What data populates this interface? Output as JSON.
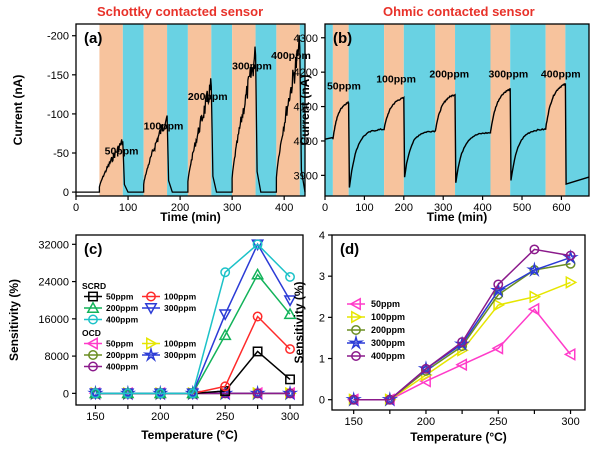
{
  "figure": {
    "title_left": "Schottky contacted sensor",
    "title_right": "Ohmic contacted sensor",
    "colors": {
      "title": "#e8322a",
      "band_blue": "#69d2e3",
      "band_orange": "#f7c39d",
      "trace": "#000000"
    }
  },
  "chart_data": [
    {
      "id": "a",
      "panel_label": "(a)",
      "type": "line",
      "title": "Schottky contacted sensor",
      "xlabel": "Time (min)",
      "ylabel": "Current (nA)",
      "xlim": [
        0,
        440
      ],
      "ylim": [
        5,
        -215
      ],
      "y_inverted": true,
      "xticks": [
        0,
        100,
        200,
        300,
        400
      ],
      "yticks": [
        0,
        -50,
        -100,
        -150,
        -200
      ],
      "ytick_labels": [
        "0",
        "-50",
        "-100",
        "-150",
        "-200"
      ],
      "shaded_background": {
        "range": [
          45,
          440
        ],
        "alternating": [
          "orange",
          "blue"
        ],
        "edges": [
          45,
          90,
          130,
          175,
          215,
          260,
          300,
          345,
          385,
          430,
          440
        ]
      },
      "annotations": [
        {
          "text": "50ppm",
          "x": 55,
          "y": -48
        },
        {
          "text": "100ppm",
          "x": 130,
          "y": -80
        },
        {
          "text": "200ppm",
          "x": 215,
          "y": -118
        },
        {
          "text": "300ppm",
          "x": 300,
          "y": -157
        },
        {
          "text": "400ppm",
          "x": 375,
          "y": -170
        }
      ],
      "pulses": [
        {
          "start": 45,
          "end": 90,
          "peak": -65,
          "label": "50ppm"
        },
        {
          "start": 130,
          "end": 175,
          "peak": -98,
          "label": "100ppm"
        },
        {
          "start": 215,
          "end": 260,
          "peak": -135,
          "label": "200ppm"
        },
        {
          "start": 300,
          "end": 345,
          "peak": -175,
          "label": "300ppm"
        },
        {
          "start": 385,
          "end": 430,
          "peak": -185,
          "label": "400ppm"
        }
      ],
      "baseline": 0
    },
    {
      "id": "b",
      "panel_label": "(b)",
      "type": "line",
      "title": "Ohmic contacted sensor",
      "xlabel": "Time (min)",
      "ylabel": "Current (nA)",
      "xlim": [
        0,
        670
      ],
      "ylim": [
        3840,
        4340
      ],
      "xticks": [
        0,
        100,
        200,
        300,
        400,
        500,
        600
      ],
      "yticks": [
        3900,
        4000,
        4100,
        4200,
        4300
      ],
      "shaded_background": {
        "range": [
          0,
          670
        ],
        "alternating": [
          "blue",
          "orange"
        ],
        "edges": [
          0,
          20,
          60,
          150,
          200,
          280,
          330,
          420,
          470,
          560,
          610,
          670
        ]
      },
      "annotations": [
        {
          "text": "50ppm",
          "x": 5,
          "y": 4150
        },
        {
          "text": "100ppm",
          "x": 130,
          "y": 4170
        },
        {
          "text": "200ppm",
          "x": 265,
          "y": 4185
        },
        {
          "text": "300ppm",
          "x": 415,
          "y": 4185
        },
        {
          "text": "400ppm",
          "x": 548,
          "y": 4185
        }
      ],
      "pulses": [
        {
          "start": 20,
          "end": 60,
          "base": 4005,
          "peak": 4112,
          "trough": 3865,
          "label": "50ppm"
        },
        {
          "start": 150,
          "end": 200,
          "base": 4035,
          "peak": 4125,
          "trough": 3895,
          "label": "100ppm"
        },
        {
          "start": 280,
          "end": 330,
          "base": 4030,
          "peak": 4135,
          "trough": 3880,
          "label": "200ppm"
        },
        {
          "start": 420,
          "end": 470,
          "base": 4025,
          "peak": 4150,
          "trough": 3885,
          "label": "300ppm"
        },
        {
          "start": 560,
          "end": 610,
          "base": 4035,
          "peak": 4165,
          "trough": 3875,
          "label": "400ppm"
        }
      ]
    },
    {
      "id": "c",
      "panel_label": "(c)",
      "type": "line",
      "xlabel": "Temperature (°C)",
      "ylabel": "Sensitivity (%)",
      "xlim": [
        135,
        310
      ],
      "ylim": [
        -2500,
        34000
      ],
      "xticks": [
        150,
        175,
        200,
        225,
        250,
        275,
        300
      ],
      "xtick_labels": [
        "150",
        "",
        "200",
        "",
        "250",
        "",
        "300"
      ],
      "yticks": [
        0,
        8000,
        16000,
        24000,
        32000
      ],
      "x": [
        150,
        175,
        200,
        225,
        250,
        275,
        300
      ],
      "legend_groups": [
        {
          "title": "SCRD",
          "series_index": [
            0,
            1,
            2,
            3,
            4
          ]
        },
        {
          "title": "OCD",
          "series_index": [
            5,
            6,
            7,
            8,
            9
          ]
        }
      ],
      "series": [
        {
          "name": "50ppm",
          "group": "SCRD",
          "color": "#000000",
          "marker": "square",
          "values": [
            0,
            0,
            0,
            0,
            500,
            9000,
            3000
          ]
        },
        {
          "name": "100ppm",
          "group": "SCRD",
          "color": "#ff2a2a",
          "marker": "circle",
          "values": [
            0,
            0,
            0,
            0,
            1500,
            16500,
            9500
          ]
        },
        {
          "name": "200ppm",
          "group": "SCRD",
          "color": "#12b35a",
          "marker": "triangle-up",
          "values": [
            0,
            0,
            0,
            0,
            12500,
            25500,
            17000
          ]
        },
        {
          "name": "300ppm",
          "group": "SCRD",
          "color": "#2b3bd6",
          "marker": "triangle-down",
          "values": [
            0,
            0,
            0,
            0,
            17000,
            32000,
            20000
          ]
        },
        {
          "name": "400ppm",
          "group": "SCRD",
          "color": "#1cc2c8",
          "marker": "circle",
          "values": [
            0,
            0,
            0,
            0,
            26000,
            32000,
            25000
          ]
        },
        {
          "name": "50ppm",
          "group": "OCD",
          "color": "#ff3bc9",
          "marker": "triangle-left",
          "values": [
            0,
            0,
            0,
            0,
            0,
            0,
            0
          ]
        },
        {
          "name": "100ppm",
          "group": "OCD",
          "color": "#e6e600",
          "marker": "triangle-right",
          "values": [
            0,
            0,
            0,
            0,
            0,
            0,
            0
          ]
        },
        {
          "name": "200ppm",
          "group": "OCD",
          "color": "#6b8e23",
          "marker": "circle",
          "values": [
            0,
            0,
            0,
            0,
            0,
            0,
            0
          ]
        },
        {
          "name": "300ppm",
          "group": "OCD",
          "color": "#2b3bd6",
          "marker": "star",
          "values": [
            0,
            0,
            0,
            0,
            0,
            0,
            0
          ]
        },
        {
          "name": "400ppm",
          "group": "OCD",
          "color": "#8b1a8b",
          "marker": "circle",
          "values": [
            0,
            0,
            0,
            0,
            0,
            0,
            0
          ]
        }
      ]
    },
    {
      "id": "d",
      "panel_label": "(d)",
      "type": "line",
      "xlabel": "Temperature (°C)",
      "ylabel": "Sensitivity (%)",
      "xlim": [
        135,
        310
      ],
      "ylim": [
        -0.25,
        4.0
      ],
      "xticks": [
        150,
        175,
        200,
        225,
        250,
        275,
        300
      ],
      "xtick_labels": [
        "150",
        "",
        "200",
        "",
        "250",
        "",
        "300"
      ],
      "yticks": [
        0,
        1,
        2,
        3,
        4
      ],
      "x": [
        150,
        175,
        200,
        225,
        250,
        275,
        300
      ],
      "series": [
        {
          "name": "50ppm",
          "color": "#ff3bc9",
          "marker": "triangle-left",
          "values": [
            0,
            0,
            0.45,
            0.85,
            1.25,
            2.2,
            1.1
          ]
        },
        {
          "name": "100ppm",
          "color": "#e6e600",
          "marker": "triangle-right",
          "values": [
            0,
            0,
            0.6,
            1.2,
            2.3,
            2.5,
            2.85
          ]
        },
        {
          "name": "200ppm",
          "color": "#6b8e23",
          "marker": "circle",
          "values": [
            0,
            0,
            0.7,
            1.3,
            2.55,
            3.15,
            3.3
          ]
        },
        {
          "name": "300ppm",
          "color": "#2b3bd6",
          "marker": "star",
          "values": [
            0,
            0,
            0.75,
            1.35,
            2.65,
            3.15,
            3.45
          ]
        },
        {
          "name": "400ppm",
          "color": "#8b1a8b",
          "marker": "circle",
          "values": [
            0,
            0,
            0.75,
            1.4,
            2.8,
            3.65,
            3.5
          ]
        }
      ]
    }
  ]
}
